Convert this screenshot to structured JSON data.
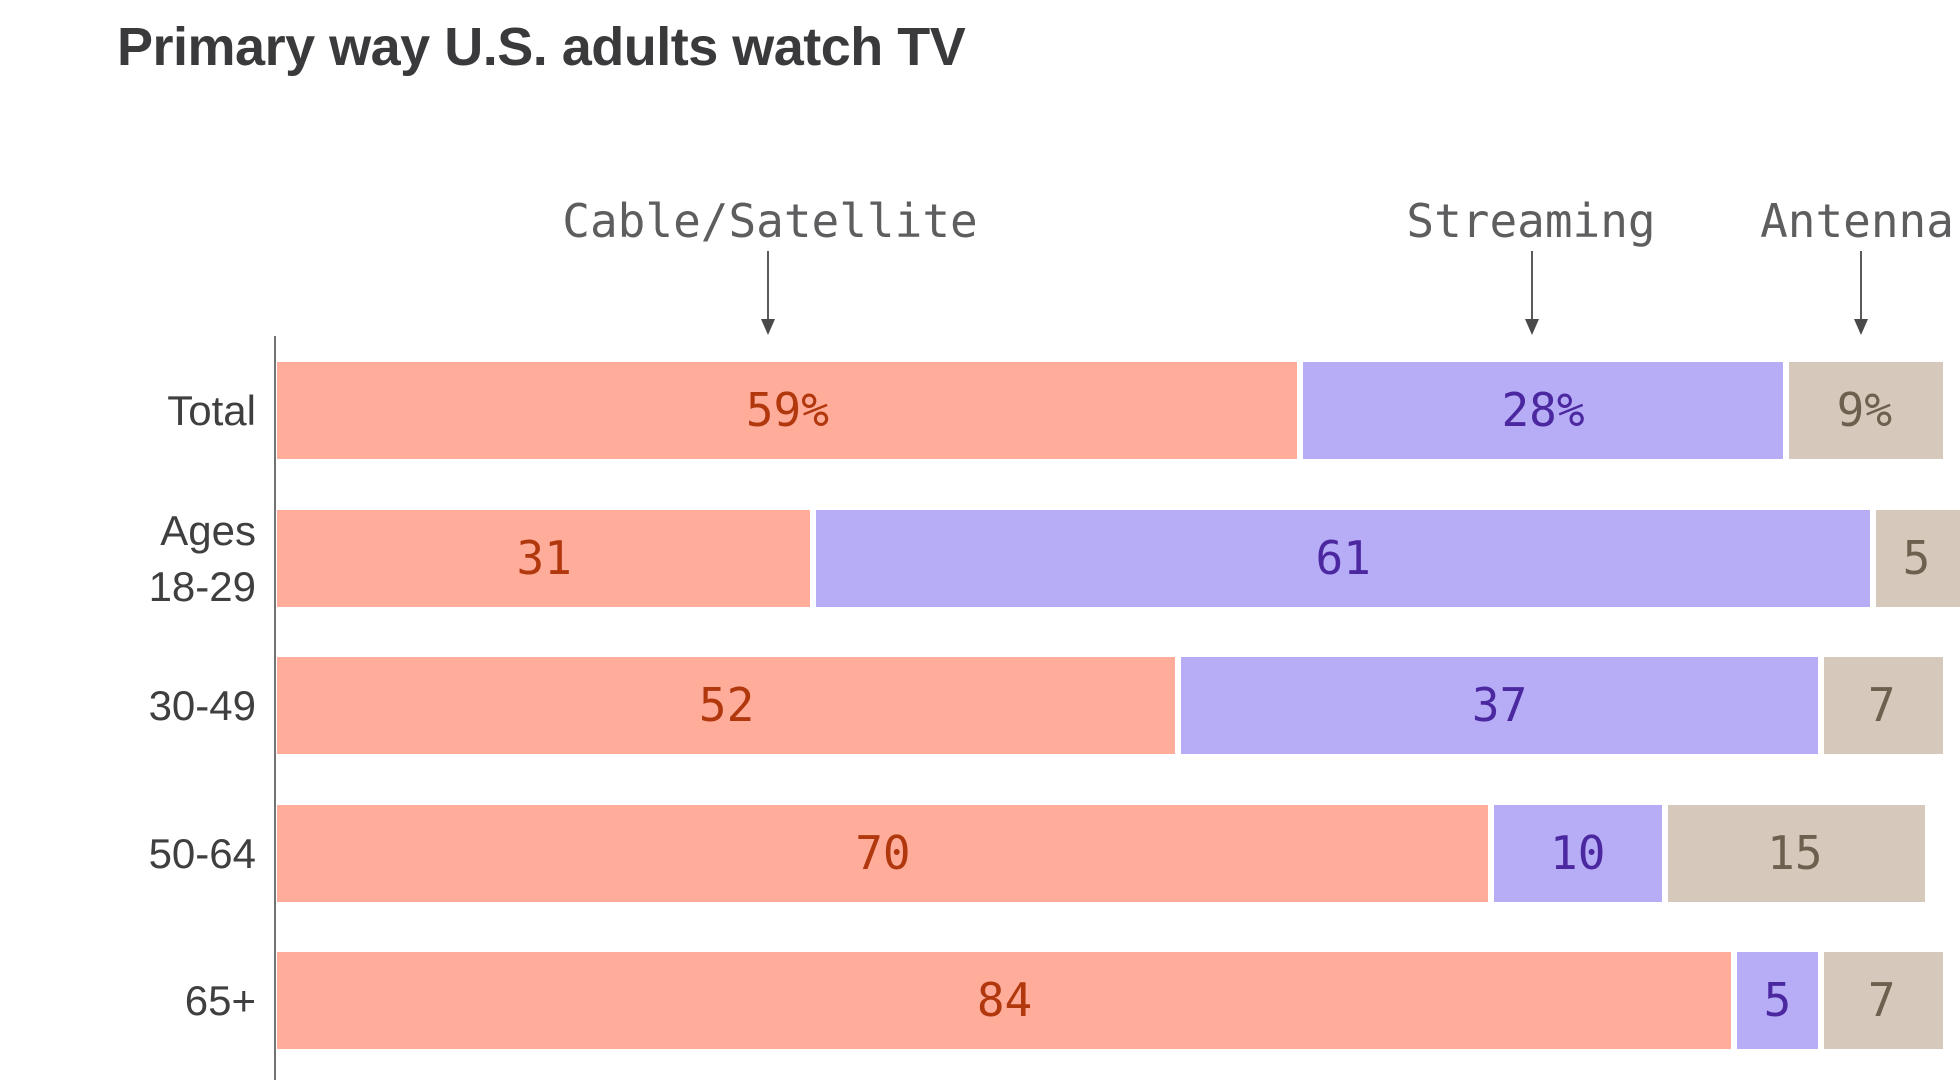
{
  "chart_data": {
    "type": "bar",
    "orientation": "horizontal_stacked",
    "title": "Primary way U.S. adults watch TV",
    "categories": [
      "Total",
      "Ages\n18-29",
      "30-49",
      "50-64",
      "65+"
    ],
    "series": [
      {
        "name": "Cable/Satellite",
        "color": "#ffac9b",
        "label_color": "#b1370d",
        "values": [
          59,
          31,
          52,
          70,
          84
        ],
        "labels": [
          "59%",
          "31",
          "52",
          "70",
          "84"
        ]
      },
      {
        "name": "Streaming",
        "color": "#b7adf6",
        "label_color": "#4c28a0",
        "values": [
          28,
          61,
          37,
          10,
          5
        ],
        "labels": [
          "28%",
          "61",
          "37",
          "10",
          "5"
        ]
      },
      {
        "name": "Antenna",
        "color": "#d6c9bb",
        "label_color": "#6c614f",
        "values": [
          9,
          5,
          7,
          15,
          7
        ],
        "labels": [
          "9%",
          "5",
          "7",
          "15",
          "7"
        ]
      }
    ],
    "legend": [
      {
        "label": "Cable/Satellite",
        "x": 770,
        "arrow_x": 768
      },
      {
        "label": "Streaming",
        "x": 1531,
        "arrow_x": 1532
      },
      {
        "label": "Antenna",
        "x": 1857,
        "arrow_x": 1861
      }
    ],
    "xlim": [
      0,
      100
    ],
    "grid": false,
    "legend_position": "top-callouts",
    "note": "right edge of chart clipped by viewport",
    "value_unit": "percent",
    "accent_colors": {
      "cable_satellite": "#ffac9b",
      "streaming": "#b7adf6",
      "antenna": "#d6c9bb"
    }
  }
}
